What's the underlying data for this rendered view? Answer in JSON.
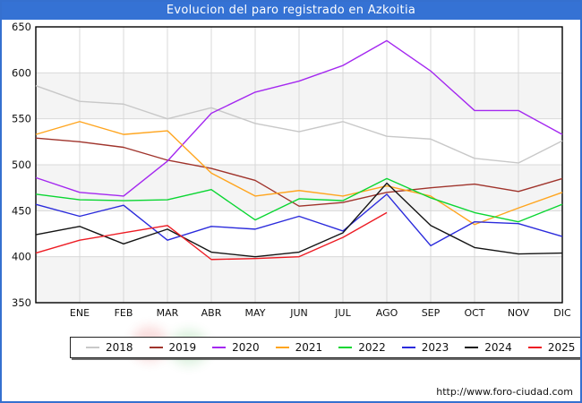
{
  "window": {
    "title": "Evolucion del paro registrado en Azkoitia"
  },
  "footer": {
    "url": "http://www.foro-ciudad.com"
  },
  "colors": {
    "titlebar": "#3572d4",
    "frame": "#3570cf",
    "plot_border": "#000000",
    "grid": "#d8d8d8",
    "band": "#f4f4f4",
    "tick_text": "#111111"
  },
  "chart_data": {
    "type": "line",
    "title": "Evolucion del paro registrado en Azkoitia",
    "xlabel": "",
    "ylabel": "",
    "ylim": [
      350,
      650
    ],
    "yticks": [
      650,
      600,
      550,
      500,
      450,
      400,
      350
    ],
    "x_categories": [
      "ENE",
      "FEB",
      "MAR",
      "ABR",
      "MAY",
      "JUN",
      "JUL",
      "AGO",
      "SEP",
      "OCT",
      "NOV",
      "DIC"
    ],
    "grid": true,
    "zebra_bands": true,
    "legend_position": "bottom",
    "note_first_point": "each line begins at the plot left border with an unlabeled starting value preceding ENE",
    "series": [
      {
        "name": "2018",
        "color": "#c8c8c8",
        "start": 586,
        "values": [
          569,
          566,
          550,
          562,
          545,
          536,
          547,
          531,
          528,
          507,
          502,
          526
        ]
      },
      {
        "name": "2019",
        "color": "#a0342c",
        "start": 529,
        "values": [
          525,
          519,
          505,
          496,
          483,
          455,
          459,
          470,
          475,
          479,
          471,
          485
        ]
      },
      {
        "name": "2020",
        "color": "#a428f0",
        "start": 486,
        "values": [
          470,
          466,
          504,
          556,
          579,
          591,
          608,
          635,
          602,
          559,
          559,
          533
        ]
      },
      {
        "name": "2021",
        "color": "#ffa51e",
        "start": 533,
        "values": [
          547,
          533,
          537,
          491,
          466,
          472,
          466,
          477,
          466,
          435,
          453,
          470
        ]
      },
      {
        "name": "2022",
        "color": "#0ad632",
        "start": 468,
        "values": [
          462,
          461,
          462,
          473,
          440,
          463,
          461,
          485,
          464,
          448,
          438,
          457
        ]
      },
      {
        "name": "2023",
        "color": "#2b2bdc",
        "start": 457,
        "values": [
          444,
          456,
          418,
          433,
          430,
          444,
          428,
          468,
          412,
          438,
          436,
          422
        ]
      },
      {
        "name": "2024",
        "color": "#141414",
        "start": 424,
        "values": [
          433,
          414,
          430,
          405,
          400,
          405,
          426,
          480,
          434,
          410,
          403,
          404
        ]
      },
      {
        "name": "2025",
        "color": "#ed1c24",
        "start": 404,
        "values": [
          418,
          426,
          434,
          397,
          398,
          400,
          421,
          448
        ]
      }
    ]
  }
}
